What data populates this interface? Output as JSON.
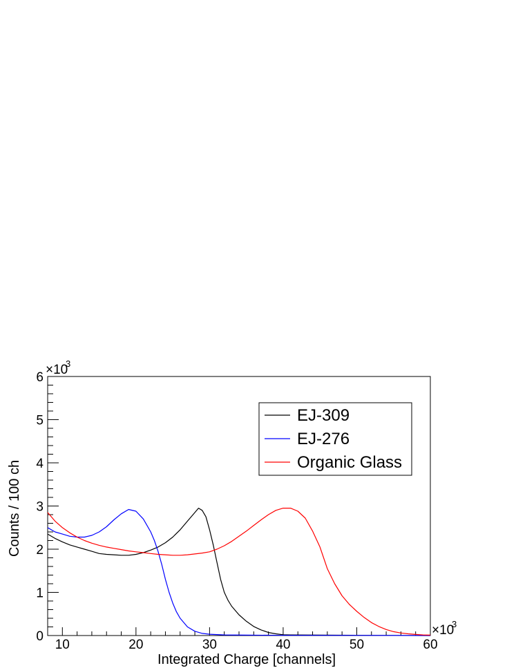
{
  "chart_data": {
    "type": "line",
    "title": "",
    "xlabel": "Integrated Charge [channels]",
    "ylabel": "Counts / 100 ch",
    "x_multiplier_label": "×10",
    "y_multiplier_label": "×10",
    "multiplier_exponent": "3",
    "x_units_note": "x in thousands of channels",
    "y_units_note": "y in thousands of counts",
    "xlim": [
      8,
      60
    ],
    "ylim": [
      0,
      6
    ],
    "x_ticks": [
      "10",
      "20",
      "30",
      "40",
      "50",
      "60"
    ],
    "y_ticks": [
      "0",
      "1",
      "2",
      "3",
      "4",
      "5",
      "6"
    ],
    "grid": false,
    "legend_position": "top-right",
    "series": [
      {
        "name": "EJ-309",
        "color": "#000000",
        "points": [
          [
            8,
            2.35
          ],
          [
            9,
            2.25
          ],
          [
            10,
            2.17
          ],
          [
            11,
            2.1
          ],
          [
            12,
            2.05
          ],
          [
            13,
            2.0
          ],
          [
            14,
            1.95
          ],
          [
            15,
            1.9
          ],
          [
            16,
            1.88
          ],
          [
            17,
            1.87
          ],
          [
            18,
            1.86
          ],
          [
            19,
            1.86
          ],
          [
            20,
            1.88
          ],
          [
            21,
            1.92
          ],
          [
            22,
            1.98
          ],
          [
            23,
            2.05
          ],
          [
            24,
            2.15
          ],
          [
            25,
            2.28
          ],
          [
            26,
            2.45
          ],
          [
            27,
            2.65
          ],
          [
            28,
            2.85
          ],
          [
            28.5,
            2.95
          ],
          [
            29,
            2.9
          ],
          [
            29.5,
            2.75
          ],
          [
            30,
            2.45
          ],
          [
            30.5,
            2.1
          ],
          [
            31,
            1.7
          ],
          [
            31.5,
            1.3
          ],
          [
            32,
            1.0
          ],
          [
            32.5,
            0.82
          ],
          [
            33,
            0.68
          ],
          [
            34,
            0.48
          ],
          [
            35,
            0.33
          ],
          [
            36,
            0.21
          ],
          [
            37,
            0.13
          ],
          [
            38,
            0.07
          ],
          [
            39,
            0.04
          ],
          [
            40,
            0.02
          ],
          [
            41,
            0.015
          ],
          [
            45,
            0.01
          ],
          [
            50,
            0.005
          ],
          [
            60,
            0.0
          ]
        ]
      },
      {
        "name": "EJ-276",
        "color": "#0000ff",
        "points": [
          [
            8,
            2.5
          ],
          [
            9,
            2.4
          ],
          [
            10,
            2.35
          ],
          [
            11,
            2.3
          ],
          [
            12,
            2.28
          ],
          [
            13,
            2.28
          ],
          [
            14,
            2.32
          ],
          [
            15,
            2.4
          ],
          [
            16,
            2.52
          ],
          [
            17,
            2.68
          ],
          [
            18,
            2.82
          ],
          [
            19,
            2.92
          ],
          [
            20,
            2.88
          ],
          [
            21,
            2.7
          ],
          [
            22,
            2.4
          ],
          [
            22.5,
            2.2
          ],
          [
            23,
            1.95
          ],
          [
            23.5,
            1.65
          ],
          [
            24,
            1.3
          ],
          [
            24.5,
            1.0
          ],
          [
            25,
            0.75
          ],
          [
            25.5,
            0.55
          ],
          [
            26,
            0.4
          ],
          [
            27,
            0.2
          ],
          [
            28,
            0.1
          ],
          [
            29,
            0.05
          ],
          [
            30,
            0.03
          ],
          [
            32,
            0.015
          ],
          [
            35,
            0.01
          ],
          [
            40,
            0.005
          ],
          [
            50,
            0.003
          ],
          [
            60,
            0.0
          ]
        ]
      },
      {
        "name": "Organic Glass",
        "color": "#ff0000",
        "points": [
          [
            8,
            2.85
          ],
          [
            9,
            2.65
          ],
          [
            10,
            2.5
          ],
          [
            11,
            2.38
          ],
          [
            12,
            2.28
          ],
          [
            13,
            2.2
          ],
          [
            14,
            2.14
          ],
          [
            15,
            2.09
          ],
          [
            16,
            2.05
          ],
          [
            17,
            2.02
          ],
          [
            18,
            1.99
          ],
          [
            19,
            1.96
          ],
          [
            20,
            1.94
          ],
          [
            21,
            1.92
          ],
          [
            22,
            1.9
          ],
          [
            23,
            1.88
          ],
          [
            24,
            1.87
          ],
          [
            25,
            1.86
          ],
          [
            26,
            1.86
          ],
          [
            27,
            1.87
          ],
          [
            28,
            1.89
          ],
          [
            29,
            1.91
          ],
          [
            30,
            1.94
          ],
          [
            31,
            2.0
          ],
          [
            32,
            2.08
          ],
          [
            33,
            2.18
          ],
          [
            34,
            2.3
          ],
          [
            35,
            2.42
          ],
          [
            36,
            2.55
          ],
          [
            37,
            2.68
          ],
          [
            38,
            2.8
          ],
          [
            39,
            2.9
          ],
          [
            40,
            2.95
          ],
          [
            41,
            2.95
          ],
          [
            42,
            2.88
          ],
          [
            43,
            2.72
          ],
          [
            44,
            2.42
          ],
          [
            45,
            2.05
          ],
          [
            45.5,
            1.8
          ],
          [
            46,
            1.55
          ],
          [
            47,
            1.2
          ],
          [
            48,
            0.92
          ],
          [
            49,
            0.72
          ],
          [
            50,
            0.56
          ],
          [
            51,
            0.42
          ],
          [
            52,
            0.3
          ],
          [
            53,
            0.21
          ],
          [
            54,
            0.14
          ],
          [
            55,
            0.09
          ],
          [
            56,
            0.06
          ],
          [
            57,
            0.04
          ],
          [
            58,
            0.025
          ],
          [
            59,
            0.015
          ],
          [
            60,
            0.01
          ]
        ]
      }
    ]
  }
}
